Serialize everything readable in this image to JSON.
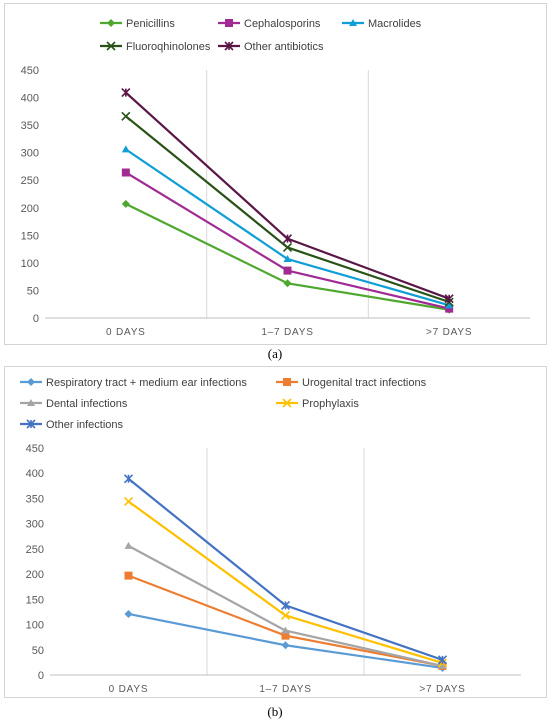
{
  "figure": {
    "label_a": "(a)",
    "label_b": "(b)"
  },
  "chart_data": [
    {
      "type": "line",
      "categories": [
        "0 DAYS",
        "1–7 DAYS",
        ">7 DAYS"
      ],
      "ylim": [
        0,
        450
      ],
      "yticks": [
        0,
        50,
        100,
        150,
        200,
        250,
        300,
        350,
        400,
        450
      ],
      "grid": "vertical",
      "legend": "top",
      "series": [
        {
          "name": "Penicillins",
          "color": "#4ea72e",
          "marker": "diamond",
          "values": [
            207,
            63,
            15
          ]
        },
        {
          "name": "Cephalosporins",
          "color": "#a02b93",
          "marker": "square",
          "values": [
            264,
            86,
            17
          ]
        },
        {
          "name": "Macrolides",
          "color": "#0f9ed5",
          "marker": "triangle",
          "values": [
            306,
            107,
            23
          ]
        },
        {
          "name": "Fluoroqhinolones",
          "color": "#275317",
          "marker": "x",
          "values": [
            366,
            128,
            29
          ]
        },
        {
          "name": "Other antibiotics",
          "color": "#5a1646",
          "marker": "star",
          "values": [
            409,
            144,
            35
          ]
        }
      ]
    },
    {
      "type": "line",
      "categories": [
        "0 DAYS",
        "1–7 DAYS",
        ">7 DAYS"
      ],
      "ylim": [
        0,
        450
      ],
      "yticks": [
        0,
        50,
        100,
        150,
        200,
        250,
        300,
        350,
        400,
        450
      ],
      "grid": "vertical",
      "legend": "top",
      "series": [
        {
          "name": "Respiratory tract + medium ear infections",
          "color": "#5b9bd5",
          "marker": "diamond",
          "values": [
            121,
            59,
            14
          ]
        },
        {
          "name": "Urogenital tract infections",
          "color": "#ed7d31",
          "marker": "square",
          "values": [
            197,
            78,
            18
          ]
        },
        {
          "name": "Dental infections",
          "color": "#a5a5a5",
          "marker": "triangle",
          "values": [
            256,
            88,
            18
          ]
        },
        {
          "name": "Prophylaxis",
          "color": "#ffc000",
          "marker": "x",
          "values": [
            344,
            118,
            24
          ]
        },
        {
          "name": "Other infections",
          "color": "#4472c4",
          "marker": "star",
          "values": [
            389,
            138,
            30
          ]
        }
      ]
    }
  ]
}
